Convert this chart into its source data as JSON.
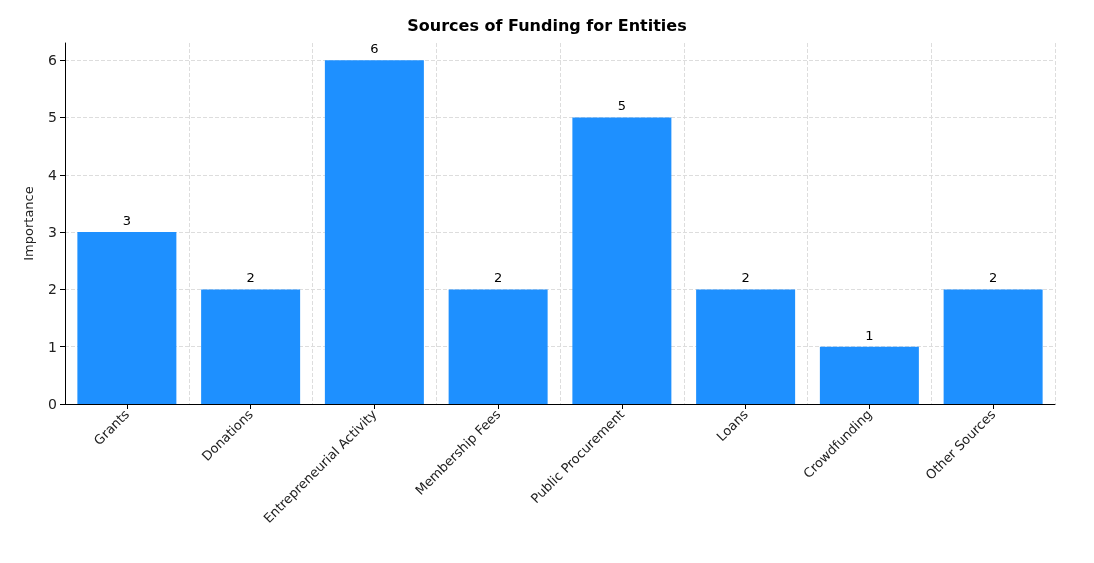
{
  "chart_data": {
    "type": "bar",
    "title": "Sources of Funding for Entities",
    "ylabel": "Importance",
    "categories": [
      "Grants",
      "Donations",
      "Entrepreneurial Activity",
      "Membership Fees",
      "Public Procurement",
      "Loans",
      "Crowdfunding",
      "Other Sources"
    ],
    "values": [
      3,
      2,
      6,
      2,
      5,
      2,
      1,
      2
    ],
    "color": "#1e90ff",
    "ylim": [
      0,
      6.3
    ],
    "yticks": [
      0,
      1,
      2,
      3,
      4,
      5,
      6
    ],
    "grid": true,
    "data_labels": true
  }
}
